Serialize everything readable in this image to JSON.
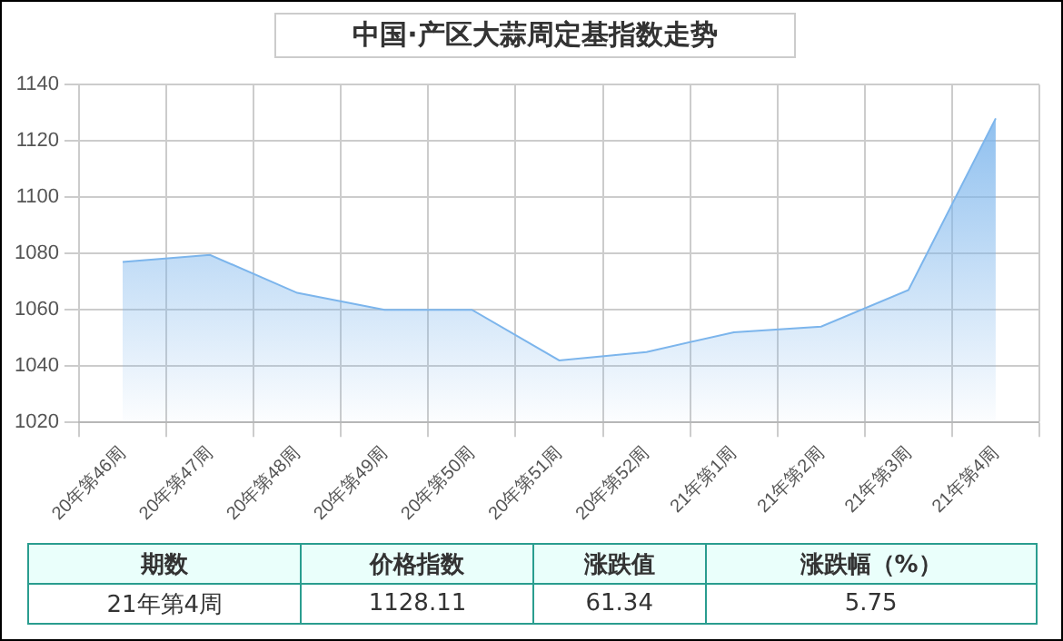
{
  "chart_data": {
    "type": "area",
    "title": "中国·产区大蒜周定基指数走势",
    "categories": [
      "20年第46周",
      "20年第47周",
      "20年第48周",
      "20年第49周",
      "20年第50周",
      "20年第51周",
      "20年第52周",
      "21年第1周",
      "21年第2周",
      "21年第3周",
      "21年第4周"
    ],
    "values": [
      1077,
      1079.5,
      1066,
      1060,
      1060,
      1042,
      1045,
      1052,
      1054,
      1067,
      1128
    ],
    "color": "#7cb5ec",
    "ylim": [
      1020,
      1140
    ],
    "yticks": [
      1020,
      1040,
      1060,
      1080,
      1100,
      1120,
      1140
    ],
    "grid": true,
    "legend": false,
    "annotations": [
      "期数",
      "价格指数",
      "涨跌值",
      "涨跌幅（%）",
      "21年第4周",
      "1128.11",
      "61.34",
      "5.75"
    ]
  }
}
